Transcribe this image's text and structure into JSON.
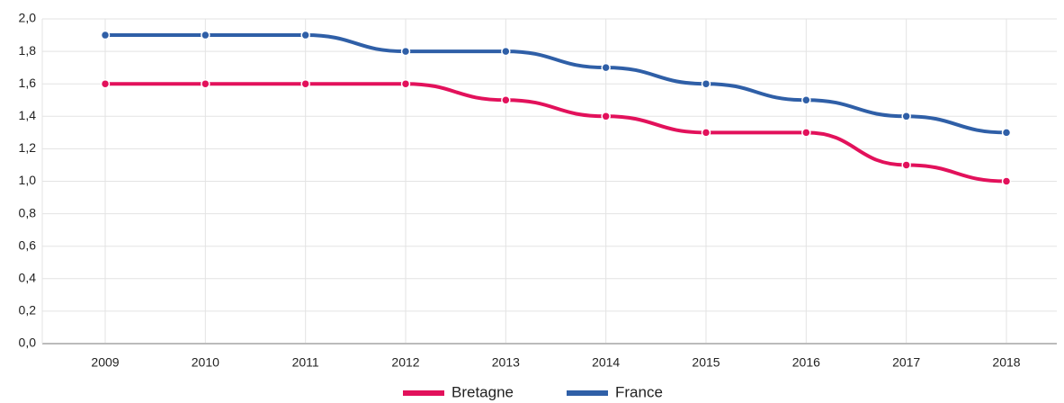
{
  "chart_data": {
    "type": "line",
    "categories": [
      "2009",
      "2010",
      "2011",
      "2012",
      "2013",
      "2014",
      "2015",
      "2016",
      "2017",
      "2018"
    ],
    "series": [
      {
        "name": "Bretagne",
        "color": "#e2115b",
        "values": [
          1.6,
          1.6,
          1.6,
          1.6,
          1.5,
          1.4,
          1.3,
          1.3,
          1.1,
          1.0
        ]
      },
      {
        "name": "France",
        "color": "#2f5fa7",
        "values": [
          1.9,
          1.9,
          1.9,
          1.8,
          1.8,
          1.7,
          1.6,
          1.5,
          1.4,
          1.3
        ]
      }
    ],
    "ylim": [
      0,
      2
    ],
    "yticks": [
      {
        "value": 0,
        "label": "0,0"
      },
      {
        "value": 0.2,
        "label": "0,2"
      },
      {
        "value": 0.4,
        "label": "0,4"
      },
      {
        "value": 0.6,
        "label": "0,6"
      },
      {
        "value": 0.8,
        "label": "0,8"
      },
      {
        "value": 1,
        "label": "1,0"
      },
      {
        "value": 1.2,
        "label": "1,2"
      },
      {
        "value": 1.4,
        "label": "1,4"
      },
      {
        "value": 1.6,
        "label": "1,6"
      },
      {
        "value": 1.8,
        "label": "1,8"
      },
      {
        "value": 2,
        "label": "2,0"
      }
    ],
    "grid": true,
    "legend": "bottom"
  }
}
